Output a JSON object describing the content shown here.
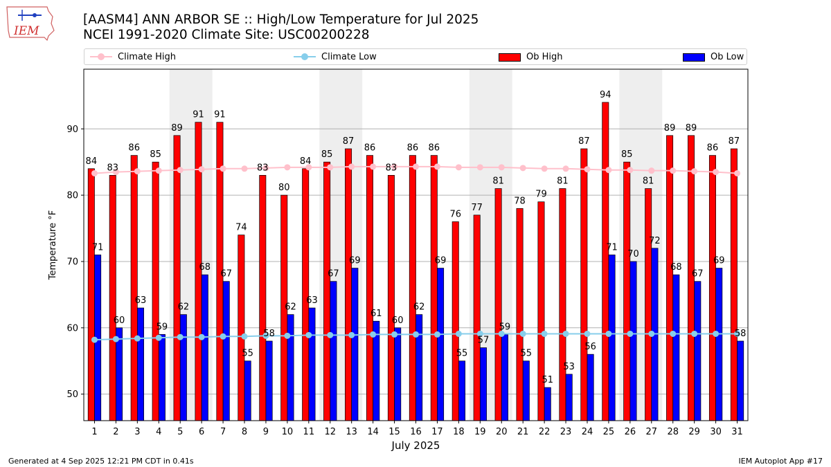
{
  "header": {
    "title_line1": "[AASM4] ANN ARBOR SE :: High/Low Temperature for Jul 2025",
    "title_line2": "NCEI 1991-2020 Climate Site: USC00200228",
    "logo_text": "IEM"
  },
  "footer": {
    "left": "Generated at 4 Sep 2025 12:21 PM CDT in 0.41s",
    "right": "IEM Autoplot App #17"
  },
  "colors": {
    "ob_high": "#ff0000",
    "ob_low": "#0000ff",
    "climate_high": "#ffc0cb",
    "climate_low": "#87ceeb",
    "weekend_shade": "#eeeeee"
  },
  "chart_data": {
    "type": "bar",
    "title": "[AASM4] ANN ARBOR SE :: High/Low Temperature for Jul 2025",
    "subtitle": "NCEI 1991-2020 Climate Site: USC00200228",
    "xlabel": "July 2025",
    "ylabel": "Temperature °F",
    "ylim": [
      46,
      99
    ],
    "yticks": [
      50,
      60,
      70,
      80,
      90
    ],
    "grid": "horizontal",
    "legend_position": "top",
    "categories": [
      "1",
      "2",
      "3",
      "4",
      "5",
      "6",
      "7",
      "8",
      "9",
      "10",
      "11",
      "12",
      "13",
      "14",
      "15",
      "16",
      "17",
      "18",
      "19",
      "20",
      "21",
      "22",
      "23",
      "24",
      "25",
      "26",
      "27",
      "28",
      "29",
      "30",
      "31"
    ],
    "shaded_weekend_days": [
      [
        5,
        6
      ],
      [
        12,
        13
      ],
      [
        19,
        20
      ],
      [
        26,
        27
      ]
    ],
    "series": [
      {
        "name": "Ob High",
        "kind": "bar",
        "values": [
          84,
          83,
          86,
          85,
          89,
          91,
          91,
          74,
          83,
          80,
          84,
          85,
          87,
          86,
          83,
          86,
          86,
          76,
          77,
          81,
          78,
          79,
          81,
          87,
          94,
          85,
          81,
          89,
          89,
          86,
          87
        ]
      },
      {
        "name": "Ob Low",
        "kind": "bar",
        "values": [
          71,
          60,
          63,
          59,
          62,
          68,
          67,
          55,
          58,
          62,
          63,
          67,
          69,
          61,
          60,
          62,
          69,
          55,
          57,
          59,
          55,
          51,
          53,
          56,
          71,
          70,
          72,
          68,
          67,
          69,
          58
        ]
      },
      {
        "name": "Climate High",
        "kind": "line",
        "values": [
          83.3,
          83.5,
          83.6,
          83.7,
          83.8,
          83.9,
          84.0,
          84.0,
          84.1,
          84.2,
          84.2,
          84.2,
          84.3,
          84.3,
          84.3,
          84.3,
          84.3,
          84.2,
          84.2,
          84.2,
          84.1,
          84.0,
          84.0,
          83.9,
          83.8,
          83.8,
          83.7,
          83.7,
          83.6,
          83.5,
          83.3
        ]
      },
      {
        "name": "Climate Low",
        "kind": "line",
        "values": [
          58.2,
          58.3,
          58.4,
          58.5,
          58.6,
          58.6,
          58.7,
          58.7,
          58.8,
          58.8,
          58.9,
          58.9,
          58.9,
          59.0,
          59.0,
          59.0,
          59.0,
          59.1,
          59.1,
          59.1,
          59.1,
          59.1,
          59.1,
          59.1,
          59.1,
          59.1,
          59.1,
          59.1,
          59.1,
          59.1,
          59.1
        ]
      }
    ]
  }
}
